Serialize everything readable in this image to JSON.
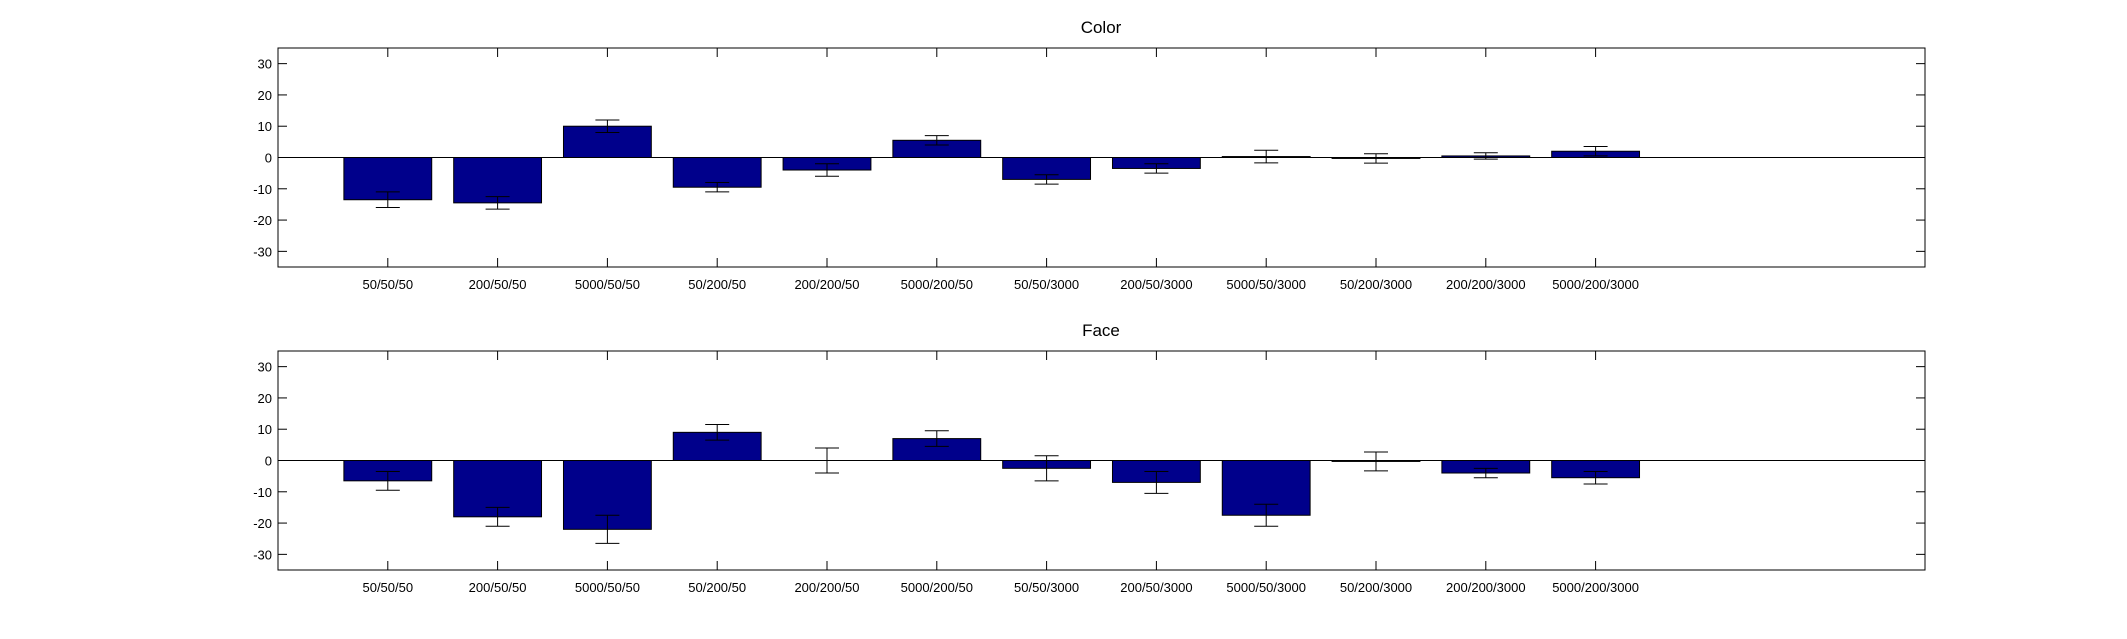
{
  "colors": {
    "bar": "#00008B",
    "axis": "#000000",
    "background": "#FFFFFF"
  },
  "chart_data": [
    {
      "type": "bar",
      "title": "Color",
      "xlabel": "",
      "ylabel": "",
      "ylim": [
        -35,
        35
      ],
      "yticks": [
        -30,
        -20,
        -10,
        0,
        10,
        20,
        30
      ],
      "xlim": [
        0,
        15
      ],
      "grid": false,
      "categories": [
        "50/50/50",
        "200/50/50",
        "5000/50/50",
        "50/200/50",
        "200/200/50",
        "5000/200/50",
        "50/50/3000",
        "200/50/3000",
        "5000/50/3000",
        "50/200/3000",
        "200/200/3000",
        "5000/200/3000"
      ],
      "values": [
        -13.5,
        -14.5,
        10,
        -9.5,
        -4,
        5.5,
        -7,
        -3.5,
        0.3,
        -0.3,
        0.5,
        2
      ],
      "errors": [
        2.5,
        2,
        2,
        1.5,
        2,
        1.5,
        1.5,
        1.5,
        2,
        1.5,
        1,
        1.5
      ]
    },
    {
      "type": "bar",
      "title": "Face",
      "xlabel": "",
      "ylabel": "",
      "ylim": [
        -35,
        35
      ],
      "yticks": [
        -30,
        -20,
        -10,
        0,
        10,
        20,
        30
      ],
      "xlim": [
        0,
        15
      ],
      "grid": false,
      "categories": [
        "50/50/50",
        "200/50/50",
        "5000/50/50",
        "50/200/50",
        "200/200/50",
        "5000/200/50",
        "50/50/3000",
        "200/50/3000",
        "5000/50/3000",
        "50/200/3000",
        "200/200/3000",
        "5000/200/3000"
      ],
      "values": [
        -6.5,
        -18,
        -22,
        9,
        0,
        7,
        -2.5,
        -7,
        -17.5,
        -0.3,
        -4,
        -5.5
      ],
      "errors": [
        3,
        3,
        4.5,
        2.5,
        4,
        2.5,
        4,
        3.5,
        3.5,
        3,
        1.5,
        2
      ]
    }
  ]
}
